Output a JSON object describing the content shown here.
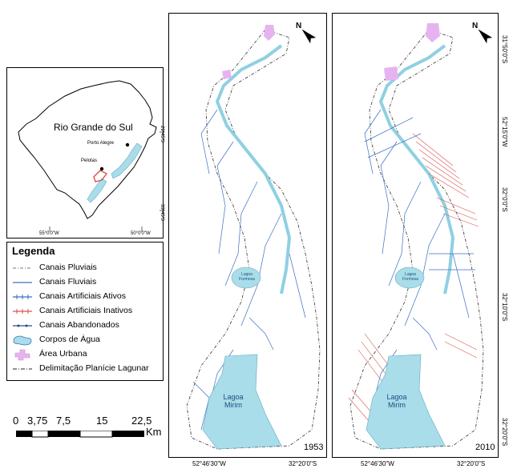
{
  "inset": {
    "state_label": "Rio Grande do Sul",
    "city_1": "Porto Alegre",
    "city_2": "Pelotas",
    "coord_lon_1": "55°0'0\"W",
    "coord_lon_2": "50°0'0\"W",
    "coord_lat_1": "29°45'S",
    "coord_lat_2": "33°45'S"
  },
  "legend": {
    "title": "Legenda",
    "items": [
      {
        "label": "Canais Pluviais",
        "symbol": "dash-dot-gray"
      },
      {
        "label": "Canais Fluviais",
        "symbol": "line-blue"
      },
      {
        "label": "Canais Artificiais Ativos",
        "symbol": "line-blue-ticks"
      },
      {
        "label": "Canais Artificiais Inativos",
        "symbol": "line-red-ticks"
      },
      {
        "label": "Canais Abandonados",
        "symbol": "line-darkblue-dots"
      },
      {
        "label": "Corpos de Água",
        "symbol": "water-polygon"
      },
      {
        "label": "Área Urbana",
        "symbol": "urban-polygon"
      },
      {
        "label": "Delimitação Planície Lagunar",
        "symbol": "dash-dot-black"
      }
    ],
    "colors": {
      "water": "#a8dde9",
      "urban": "#e6b3f0",
      "fluvial": "#3b6fc4",
      "inactive": "#d9534f",
      "abandoned": "#2c4a8a"
    }
  },
  "scalebar": {
    "ticks": [
      "0",
      "3,75",
      "7,5",
      "15",
      "22,5"
    ],
    "unit": "Km"
  },
  "maps": [
    {
      "year": "1953",
      "lagoa_formosa": "Lagoa Formosa",
      "lagoa_mirim": "Lagoa Mirim",
      "coord_bottom_1": "52°46'30\"W",
      "coord_bottom_2": "32°20'0\"S"
    },
    {
      "year": "2010",
      "lagoa_formosa": "Lagoa Formosa",
      "lagoa_mirim": "Lagoa Mirim",
      "coord_bottom_1": "52°46'30\"W",
      "coord_bottom_2": "32°20'0\"S",
      "coord_right": [
        "31°50'0\"S",
        "52°15'0\"W",
        "32°0'0\"S",
        "32°10'0\"S",
        "32°20'0\"S"
      ]
    }
  ],
  "north_label": "N"
}
